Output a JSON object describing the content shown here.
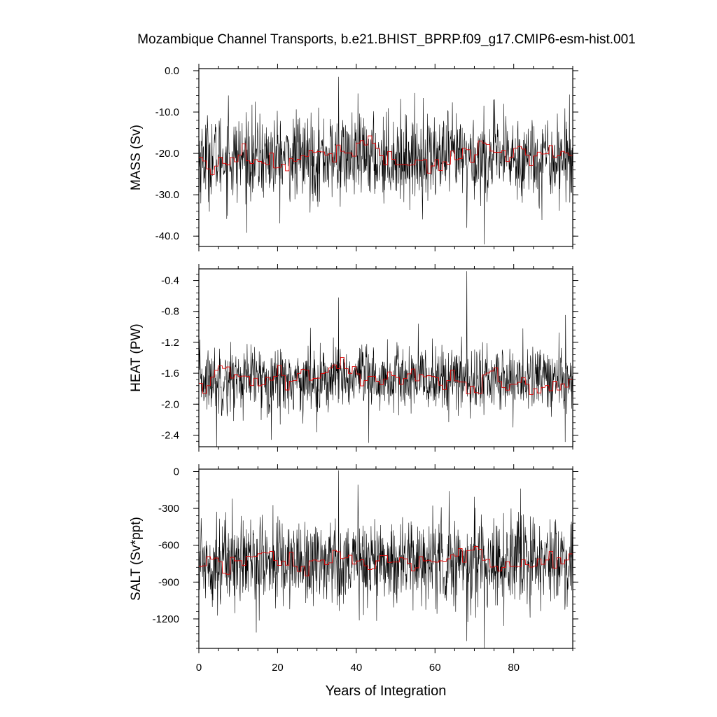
{
  "chart_data": {
    "title": "Mozambique Channel Transports, b.e21.BHIST_BPRP.f09_g17.CMIP6-esm-hist.001",
    "xlabel": "Years of Integration",
    "xlim": [
      0,
      95
    ],
    "xticks": [
      0,
      20,
      40,
      60,
      80
    ],
    "colors": {
      "annual": "#000000",
      "smoothed": "#e00000"
    },
    "panels": [
      {
        "type": "line",
        "ylabel": "MASS (Sv)",
        "ylim": [
          -42.5,
          0.5
        ],
        "yticks": [
          0,
          -10,
          -20,
          -30,
          -40
        ],
        "ytick_labels": [
          "0.0",
          "-10.0",
          "-20.0",
          "-30.0",
          "-40.0"
        ],
        "series": [
          {
            "style": "monthly",
            "mean": -21,
            "sd": 5.2,
            "n": 1140,
            "spikes": [
              [
                35.5,
                -1.5
              ],
              [
                72.5,
                -42
              ],
              [
                68.1,
                -38
              ],
              [
                7.5,
                -6
              ]
            ]
          },
          {
            "style": "annual-mean",
            "mean": -21,
            "sd": 1.6,
            "n": 95
          }
        ]
      },
      {
        "type": "line",
        "ylabel": "HEAT (PW)",
        "ylim": [
          -2.55,
          -0.25
        ],
        "yticks": [
          -0.4,
          -0.8,
          -1.2,
          -1.6,
          -2.0,
          -2.4
        ],
        "ytick_labels": [
          "-0.4",
          "-0.8",
          "-1.2",
          "-1.6",
          "-2.0",
          "-2.4"
        ],
        "series": [
          {
            "style": "monthly",
            "mean": -1.68,
            "sd": 0.22,
            "n": 1140,
            "spikes": [
              [
                68.1,
                -0.28
              ],
              [
                35.5,
                -0.62
              ],
              [
                43.2,
                -2.5
              ],
              [
                4.5,
                -2.55
              ]
            ]
          },
          {
            "style": "annual-mean",
            "mean": -1.65,
            "sd": 0.08,
            "n": 95
          }
        ]
      },
      {
        "type": "line",
        "ylabel": "SALT (Sv*ppt)",
        "ylim": [
          -1440,
          20
        ],
        "yticks": [
          0,
          -300,
          -600,
          -900,
          -1200
        ],
        "ytick_labels": [
          "0",
          "-300",
          "-600",
          "-900",
          "-1200"
        ],
        "series": [
          {
            "style": "monthly",
            "mean": -730,
            "sd": 180,
            "n": 1140,
            "spikes": [
              [
                35.5,
                10
              ],
              [
                72.5,
                -1440
              ],
              [
                68.1,
                -1380
              ],
              [
                8.5,
                -220
              ]
            ]
          },
          {
            "style": "annual-mean",
            "mean": -730,
            "sd": 55,
            "n": 95
          }
        ]
      }
    ]
  }
}
